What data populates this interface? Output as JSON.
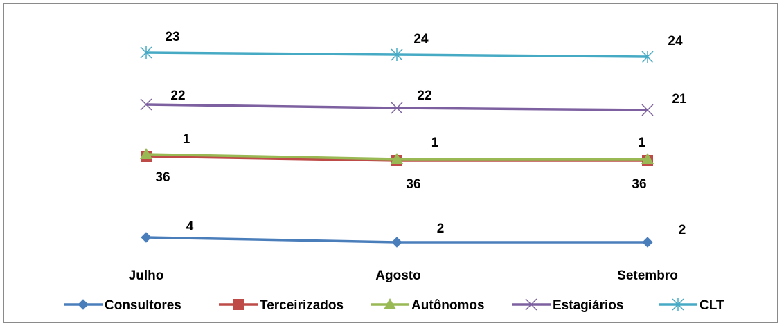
{
  "chart_data": {
    "type": "line",
    "stacked": true,
    "title": "",
    "xlabel": "",
    "ylabel": "",
    "categories": [
      "Julho",
      "Agosto",
      "Setembro"
    ],
    "grid": false,
    "value_axis_visible": false,
    "legend_position": "bottom",
    "series": [
      {
        "name": "Consultores",
        "values": [
          4,
          2,
          2
        ],
        "color": "#4a7ebb",
        "marker": "diamond"
      },
      {
        "name": "Terceirizados",
        "values": [
          36,
          36,
          36
        ],
        "color": "#be4b48",
        "marker": "square"
      },
      {
        "name": "Autônomos",
        "values": [
          1,
          1,
          1
        ],
        "color": "#98b954",
        "marker": "triangle"
      },
      {
        "name": "Estagiários",
        "values": [
          22,
          22,
          21
        ],
        "color": "#7d60a0",
        "marker": "x"
      },
      {
        "name": "CLT",
        "values": [
          23,
          24,
          24
        ],
        "color": "#46aac5",
        "marker": "asterisk"
      }
    ]
  }
}
